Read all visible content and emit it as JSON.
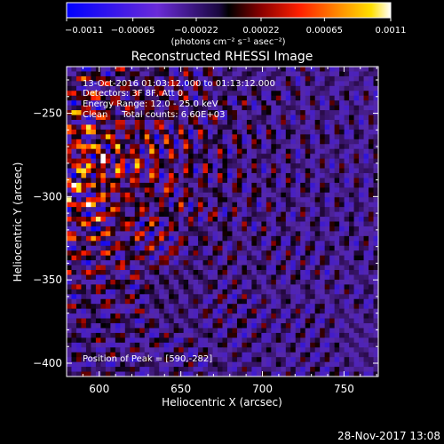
{
  "chart_data": {
    "type": "heatmap",
    "title": "Reconstructed RHESSI Image",
    "xlabel": "Heliocentric X (arcsec)",
    "ylabel": "Heliocentric Y (arcsec)",
    "xlim": [
      580,
      771
    ],
    "ylim": [
      -408,
      -222
    ],
    "x_ticks": [
      600,
      650,
      700,
      750
    ],
    "y_ticks": [
      -250,
      -300,
      -350,
      -400
    ],
    "x_tick_labels": [
      "600",
      "650",
      "700",
      "750"
    ],
    "y_tick_labels": [
      "−250",
      "−300",
      "−350",
      "−400"
    ],
    "colorbar": {
      "range": [
        -0.0011,
        0.0011
      ],
      "ticks": [
        -0.0011,
        -0.00065,
        -0.00022,
        0.00022,
        0.00065,
        0.0011
      ],
      "tick_labels": [
        "−0.0011",
        "−0.00065",
        "−0.00022",
        "0.00022",
        "0.00065",
        "0.0011"
      ],
      "label": "(photons cm⁻² s⁻¹ asec⁻²)",
      "colors": [
        "#0000ff",
        "#6a2bd8",
        "#000000",
        "#800000",
        "#ff2000",
        "#ff8c00",
        "#ffe000",
        "#ffffff"
      ]
    },
    "grid": false,
    "annotations": [
      "13-Oct-2016 01:03:12.000 to 01:13:12.000",
      "Detectors: 3F 8F, Att 0",
      "Energy Range: 12.0 - 25.0 keV",
      "Clean     Total counts: 6.60E+03",
      "Position of Peak = [590,-282]"
    ],
    "peak": [
      590,
      -282
    ],
    "footer": "28-Nov-2017 13:08"
  }
}
